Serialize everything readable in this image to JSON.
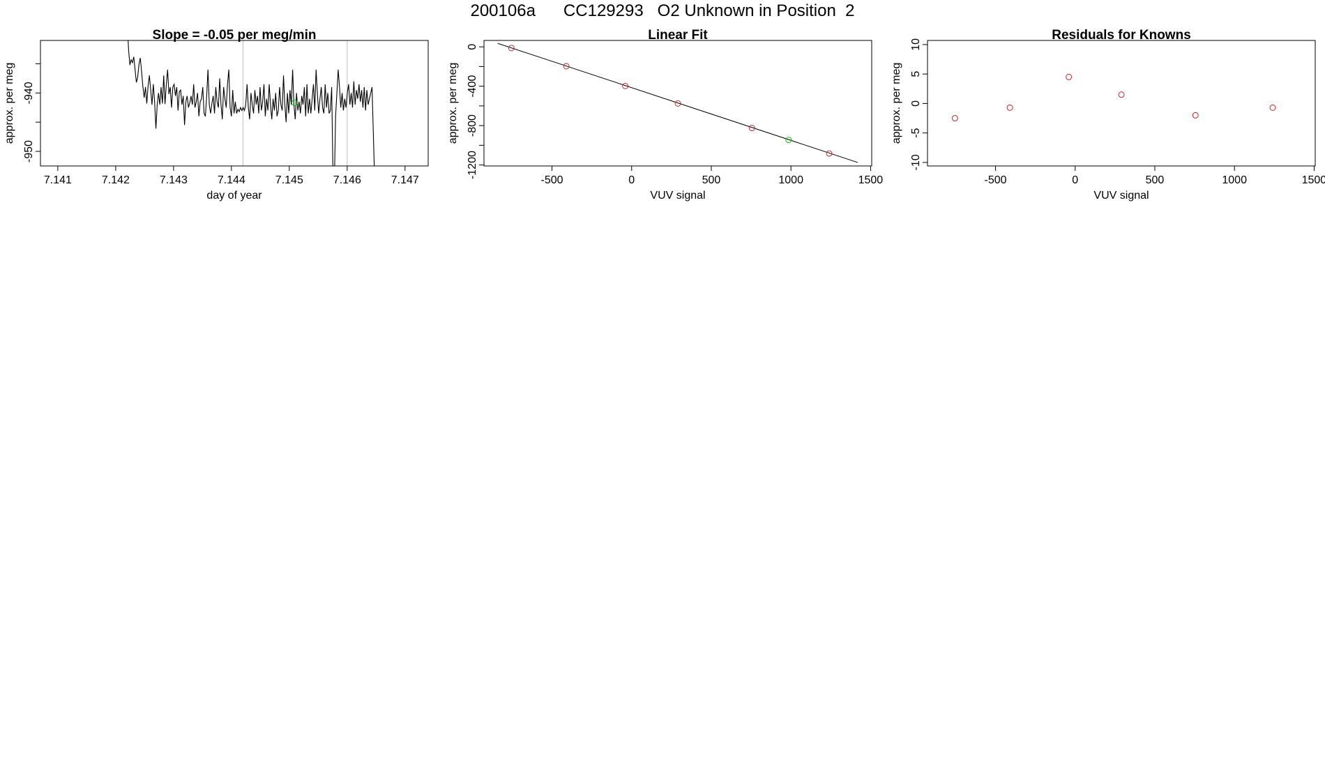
{
  "page": {
    "title": "200106a      CC129293   O2 Unknown in Position  2"
  },
  "chart_data": [
    {
      "type": "line",
      "title": "Slope =  -0.05  per meg/min",
      "xlabel": "day of year",
      "ylabel": "approx. per meg",
      "xlim": [
        7.1407,
        7.1474
      ],
      "ylim": [
        -952.5,
        -931
      ],
      "x_ticks": [
        7.141,
        7.142,
        7.143,
        7.144,
        7.145,
        7.146,
        7.147
      ],
      "x_tick_labels": [
        "7.141",
        "7.142",
        "7.143",
        "7.144",
        "7.145",
        "7.146",
        "7.147"
      ],
      "y_ticks": [
        -950,
        -945,
        -940,
        -935
      ],
      "y_tick_labels": [
        "-950",
        "",
        "-940",
        ""
      ],
      "vlines": [
        7.1442,
        7.146
      ],
      "series": [
        {
          "color": "#000000",
          "x_start": 7.1422,
          "x_step": 2.25e-05,
          "values": [
            -928,
            -932.5,
            -935.2,
            -934.3,
            -934.8,
            -933.8,
            -936.0,
            -938.2,
            -937.3,
            -935.1,
            -934.0,
            -936.3,
            -938.9,
            -940.8,
            -939.0,
            -941.8,
            -938.8,
            -937.0,
            -939.5,
            -942.0,
            -938.5,
            -941.5,
            -946.1,
            -942.0,
            -940.0,
            -942.0,
            -939.0,
            -941.8,
            -937.0,
            -941.9,
            -938.5,
            -936.0,
            -940.2,
            -939.0,
            -942.5,
            -939.0,
            -938.5,
            -940.5,
            -939.0,
            -943.0,
            -939.8,
            -939.5,
            -942.0,
            -940.5,
            -945.5,
            -941.5,
            -940.5,
            -942.5,
            -941.7,
            -940.5,
            -942.0,
            -938.5,
            -942.5,
            -941.5,
            -940.0,
            -944.0,
            -941.5,
            -941.0,
            -939.0,
            -943.5,
            -944.0,
            -940.5,
            -936.0,
            -942.0,
            -943.5,
            -941.8,
            -940.5,
            -943.5,
            -939.0,
            -941.5,
            -942.5,
            -937.5,
            -942.0,
            -944.5,
            -939.0,
            -941.0,
            -942.5,
            -938.5,
            -936.0,
            -942.5,
            -944.0,
            -939.5,
            -943.5,
            -941.5,
            -943.5,
            -942.8,
            -943.2,
            -942.5,
            -943.0,
            -942.5,
            -943.0,
            -942.0,
            -938.5,
            -942.5,
            -944.5,
            -940.0,
            -942.0,
            -943.5,
            -939.5,
            -942.0,
            -940.5,
            -943.5,
            -939.0,
            -943.0,
            -941.5,
            -938.5,
            -944.0,
            -941.0,
            -943.0,
            -938.5,
            -942.0,
            -944.5,
            -941.0,
            -943.0,
            -940.0,
            -944.0,
            -943.0,
            -939.0,
            -942.0,
            -943.0,
            -937.0,
            -942.0,
            -945.0,
            -940.0,
            -943.5,
            -939.5,
            -942.0,
            -936.0,
            -942.0,
            -944.5,
            -940.0,
            -943.0,
            -941.5,
            -943.5,
            -940.5,
            -942.0,
            -939.0,
            -944.0,
            -938.5,
            -943.5,
            -941.0,
            -943.5,
            -941.0,
            -938.5,
            -943.0,
            -936.0,
            -940.0,
            -943.5,
            -941.0,
            -939.0,
            -942.5,
            -943.5,
            -938.5,
            -942.5,
            -940.0,
            -943.5,
            -943.0,
            -939.0,
            -954.0,
            -956.0,
            -944.0,
            -940.0,
            -936.0,
            -939.0,
            -942.5,
            -940.0,
            -943.0,
            -941.0,
            -942.5,
            -940.0,
            -938.5,
            -942.0,
            -940.0,
            -942.5,
            -938.0,
            -942.0,
            -939.5,
            -941.0,
            -938.5,
            -941.5,
            -939.5,
            -942.5,
            -939.0,
            -943.0,
            -939.5,
            -942.0,
            -941.0,
            -940.0,
            -939.0,
            -947.0,
            -955.0
          ]
        }
      ],
      "markers": [
        {
          "x": 7.14509,
          "y": -941.7,
          "color": "#00c800"
        }
      ]
    },
    {
      "type": "scatter",
      "title": "Linear Fit",
      "xlabel": "VUV signal",
      "ylabel": "approx. per meg",
      "xlim": [
        -927,
        1507
      ],
      "ylim": [
        -1210,
        65
      ],
      "x_ticks": [
        -500,
        0,
        500,
        1000,
        1500
      ],
      "x_tick_labels": [
        "-500",
        "0",
        "500",
        "1000",
        "1500"
      ],
      "y_ticks": [
        0,
        -200,
        -400,
        -600,
        -800,
        -1000,
        -1200
      ],
      "y_tick_labels": [
        "0",
        "",
        "-400",
        "",
        "-800",
        "",
        "-1200"
      ],
      "fit_line": {
        "x": [
          -840,
          1420
        ],
        "y": [
          35,
          -1175
        ],
        "color": "#000000"
      },
      "series": [
        {
          "color": "#cd2626",
          "x": [
            -755,
            -410,
            -40,
            290,
            755,
            1240
          ],
          "y": [
            -12,
            -197,
            -398,
            -575,
            -824,
            -1083
          ]
        },
        {
          "color": "#00c800",
          "x": [
            985
          ],
          "y": [
            -946
          ]
        }
      ]
    },
    {
      "type": "scatter",
      "title": "Residuals for Knowns",
      "xlabel": "VUV signal",
      "ylabel": "approx. per meg",
      "xlim": [
        -927,
        1507
      ],
      "ylim": [
        -10.6,
        10.7
      ],
      "x_ticks": [
        -500,
        0,
        500,
        1000,
        1500
      ],
      "x_tick_labels": [
        "-500",
        "0",
        "500",
        "1000",
        "1500"
      ],
      "y_ticks": [
        10,
        5,
        0,
        -5,
        -10
      ],
      "y_tick_labels": [
        "10",
        "5",
        "0",
        "-5",
        "-10"
      ],
      "series": [
        {
          "color": "#cd2626",
          "x": [
            -755,
            -410,
            -40,
            290,
            755,
            1240
          ],
          "y": [
            -2.5,
            -0.7,
            4.5,
            1.5,
            -2.0,
            -0.7
          ]
        }
      ]
    }
  ]
}
